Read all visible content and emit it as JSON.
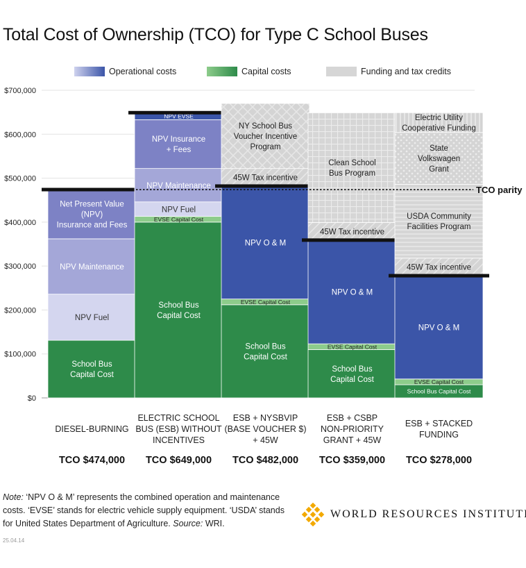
{
  "chart_data": {
    "type": "bar",
    "stacked": true,
    "title": "Total Cost of Ownership (TCO) for Type C School Buses",
    "ylim": [
      0,
      700000
    ],
    "yticks": [
      0,
      100000,
      200000,
      300000,
      400000,
      500000,
      600000,
      700000
    ],
    "ytick_labels": [
      "$0",
      "$100,000",
      "$200,000",
      "$300,000",
      "$400,000",
      "$500,000",
      "$600,000",
      "$700,000"
    ],
    "legend": [
      {
        "name": "Operational costs",
        "color": "#3b55a8"
      },
      {
        "name": "Capital costs",
        "color": "#2e8b4a"
      },
      {
        "name": "Funding and tax credits",
        "color": "#d0d0d0"
      }
    ],
    "parity": {
      "value": 474000,
      "label": "TCO parity"
    },
    "categories": [
      {
        "label": [
          "DIESEL-BURNING"
        ],
        "tco_label": "TCO $474,000",
        "tco": 474000,
        "segments": [
          {
            "label": "School Bus\nCapital Cost",
            "from": 0,
            "to": 131000,
            "color": "#2e8b4a",
            "text_color": "#ffffff"
          },
          {
            "label": "NPV Fuel",
            "from": 131000,
            "to": 236000,
            "color": "#d4d6ef",
            "text_color": "#333333"
          },
          {
            "label": "NPV Maintenance",
            "from": 236000,
            "to": 362000,
            "color": "#a4a7d8",
            "text_color": "#ffffff"
          },
          {
            "label": "Net Present Value\n(NPV)\nInsurance and Fees",
            "from": 362000,
            "to": 474000,
            "color": "#7d82c5",
            "text_color": "#ffffff"
          }
        ]
      },
      {
        "label": [
          "ELECTRIC SCHOOL",
          "BUS (ESB) WITHOUT",
          "INCENTIVES"
        ],
        "tco_label": "TCO $649,000",
        "tco": 649000,
        "segments": [
          {
            "label": "School Bus\nCapital Cost",
            "from": 0,
            "to": 400000,
            "color": "#2e8b4a",
            "text_color": "#ffffff"
          },
          {
            "label": "EVSE Capital Cost",
            "from": 400000,
            "to": 413000,
            "color": "#8dcc8b",
            "text_color": "#222222",
            "small": true
          },
          {
            "label": "NPV Fuel",
            "from": 413000,
            "to": 446000,
            "color": "#d4d6ef",
            "text_color": "#333333"
          },
          {
            "label": "NPV Maintenance",
            "from": 446000,
            "to": 522000,
            "color": "#a4a7d8",
            "text_color": "#ffffff"
          },
          {
            "label": "NPV Insurance\n+ Fees",
            "from": 522000,
            "to": 633000,
            "color": "#7d82c5",
            "text_color": "#ffffff"
          },
          {
            "label": "NPV EVSE",
            "from": 633000,
            "to": 649000,
            "color": "#3b55a8",
            "text_color": "#ffffff",
            "small": true
          }
        ]
      },
      {
        "label": [
          "ESB + NYSBVIP",
          "(BASE VOUCHER $)",
          "+ 45W"
        ],
        "tco_label": "TCO $482,000",
        "tco": 482000,
        "segments": [
          {
            "label": "School Bus\nCapital Cost",
            "from": 0,
            "to": 212000,
            "color": "#2e8b4a",
            "text_color": "#ffffff"
          },
          {
            "label": "EVSE Capital Cost",
            "from": 212000,
            "to": 225000,
            "color": "#8dcc8b",
            "text_color": "#222222",
            "small": true
          },
          {
            "label": "NPV O & M",
            "from": 225000,
            "to": 482000,
            "color": "#3b55a8",
            "text_color": "#ffffff"
          },
          {
            "label": "45W Tax incentive",
            "from": 482000,
            "to": 522000,
            "color": "#d0d0d0",
            "text_color": "#222222",
            "pattern": "diag"
          },
          {
            "label": "NY School Bus\nVoucher Incentive\nProgram",
            "from": 522000,
            "to": 670000,
            "color": "#d0d0d0",
            "text_color": "#222222",
            "pattern": "cross"
          }
        ]
      },
      {
        "label": [
          "ESB + CSBP",
          "NON-PRIORITY",
          "GRANT + 45W"
        ],
        "tco_label": "TCO $359,000",
        "tco": 359000,
        "segments": [
          {
            "label": "School Bus\nCapital Cost",
            "from": 0,
            "to": 110000,
            "color": "#2e8b4a",
            "text_color": "#ffffff"
          },
          {
            "label": "EVSE Capital Cost",
            "from": 110000,
            "to": 123000,
            "color": "#8dcc8b",
            "text_color": "#222222",
            "small": true
          },
          {
            "label": "NPV O & M",
            "from": 123000,
            "to": 359000,
            "color": "#3b55a8",
            "text_color": "#ffffff"
          },
          {
            "label": "45W Tax incentive",
            "from": 359000,
            "to": 399000,
            "color": "#d0d0d0",
            "text_color": "#222222",
            "pattern": "diag"
          },
          {
            "label": "Clean School\nBus Program",
            "from": 399000,
            "to": 649000,
            "color": "#d0d0d0",
            "text_color": "#222222",
            "pattern": "grid"
          }
        ]
      },
      {
        "label": [
          "ESB + STACKED",
          "FUNDING"
        ],
        "tco_label": "TCO $278,000",
        "tco": 278000,
        "segments": [
          {
            "label": "School Bus Capital Cost",
            "from": 0,
            "to": 30000,
            "color": "#2e8b4a",
            "text_color": "#ffffff",
            "small": true
          },
          {
            "label": "EVSE Capital Cost",
            "from": 30000,
            "to": 43000,
            "color": "#8dcc8b",
            "text_color": "#222222",
            "small": true
          },
          {
            "label": "NPV O & M",
            "from": 43000,
            "to": 278000,
            "color": "#3b55a8",
            "text_color": "#ffffff"
          },
          {
            "label": "45W Tax incentive",
            "from": 278000,
            "to": 318000,
            "color": "#d0d0d0",
            "text_color": "#222222",
            "pattern": "diag"
          },
          {
            "label": "USDA Community\nFacilities Program",
            "from": 318000,
            "to": 486000,
            "color": "#d0d0d0",
            "text_color": "#222222",
            "pattern": "hstripe"
          },
          {
            "label": "State\nVolkswagen\nGrant",
            "from": 486000,
            "to": 604000,
            "color": "#d0d0d0",
            "text_color": "#222222",
            "pattern": "dots"
          },
          {
            "label": "Electric Utility\nCooperative Funding",
            "from": 604000,
            "to": 649000,
            "color": "#d0d0d0",
            "text_color": "#222222",
            "pattern": "vstripe"
          }
        ]
      }
    ]
  },
  "note": {
    "lead": "Note:",
    "body": " ‘NPV O & M’ represents the combined operation and maintenance costs. ‘EVSE’ stands for electric vehicle supply equipment. ‘USDA’ stands for United States Department of Agriculture. ",
    "source_lead": "Source:",
    "source": " WRI."
  },
  "date_code": "25.04.14",
  "logo": {
    "text": "WORLD RESOURCES INSTITUTE",
    "icon": "wri-diamond-icon",
    "color": "#f2a900"
  }
}
